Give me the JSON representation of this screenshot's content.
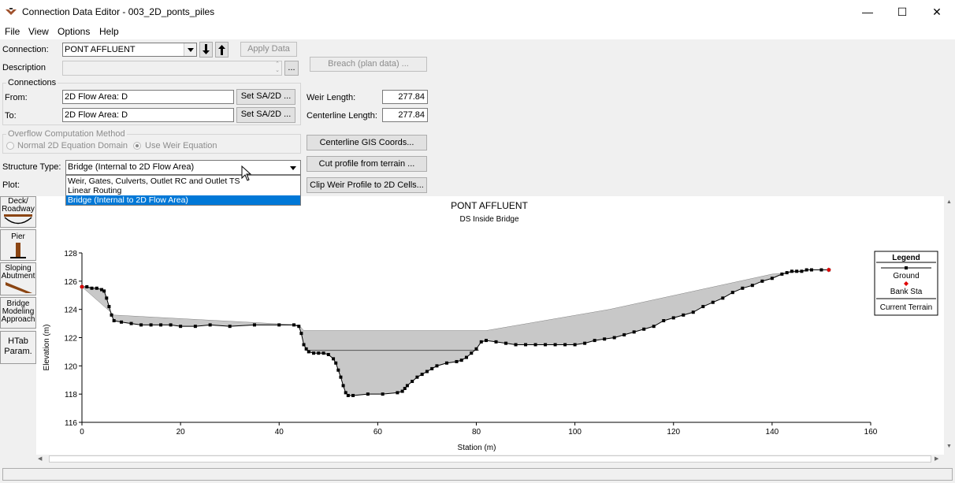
{
  "window": {
    "title": "Connection Data Editor - 003_2D_ponts_piles",
    "minimize": "—",
    "maximize": "☐",
    "close": "✕"
  },
  "menu": [
    "File",
    "View",
    "Options",
    "Help"
  ],
  "form": {
    "connection_label": "Connection:",
    "connection_value": "PONT AFFLUENT",
    "apply_data": "Apply Data",
    "description_label": "Description",
    "ellipsis": "...",
    "breach_button": "Breach (plan data) ...",
    "connections_group": "Connections",
    "from_label": "From:",
    "from_value": "2D Flow Area: D",
    "to_label": "To:",
    "to_value": "2D Flow Area: D",
    "set_sa_button": "Set SA/2D ...",
    "weir_length_label": "Weir Length:",
    "weir_length_value": "277.84",
    "centerline_length_label": "Centerline Length:",
    "centerline_length_value": "277.84",
    "overflow_group": "Overflow Computation Method",
    "overflow_option_1": "Normal 2D Equation Domain",
    "overflow_option_2": "Use Weir Equation",
    "centerline_gis_button": "Centerline GIS Coords...",
    "cut_profile_button": "Cut profile from terrain ...",
    "clip_weir_button": "Clip Weir Profile to 2D Cells...",
    "structure_type_label": "Structure Type:",
    "structure_type_value": "Bridge (Internal to 2D Flow Area)",
    "structure_type_options": [
      "Weir, Gates, Culverts, Outlet RC and Outlet TS",
      "Linear Routing",
      "Bridge (Internal to 2D Flow Area)"
    ],
    "plot_label": "Plot:"
  },
  "toolbar": {
    "deck": [
      "Deck/",
      "Roadway"
    ],
    "pier": "Pier",
    "sloping": [
      "Sloping",
      "Abutment"
    ],
    "bridge_modeling": [
      "Bridge",
      "Modeling",
      "Approach"
    ],
    "htab": [
      "HTab",
      "Param."
    ]
  },
  "chart_data": {
    "type": "line",
    "title": "PONT AFFLUENT",
    "subtitle": "DS Inside Bridge",
    "xlabel": "Station (m)",
    "ylabel": "Elevation (m)",
    "xlim": [
      0,
      160
    ],
    "ylim": [
      116,
      128
    ],
    "xticks": [
      0,
      20,
      40,
      60,
      80,
      100,
      120,
      140,
      160
    ],
    "yticks": [
      116,
      118,
      120,
      122,
      124,
      126,
      128
    ],
    "legend_title": "Legend",
    "legend": [
      "Ground",
      "Bank Sta",
      "Current Terrain"
    ],
    "colors": {
      "ground": "#000000",
      "bank": "#e00000",
      "fill": "#c8c8c8"
    },
    "ground": [
      [
        0,
        125.6
      ],
      [
        1,
        125.6
      ],
      [
        2,
        125.5
      ],
      [
        3,
        125.5
      ],
      [
        4,
        125.4
      ],
      [
        4.5,
        125.3
      ],
      [
        5,
        124.8
      ],
      [
        5.5,
        124.2
      ],
      [
        6,
        123.6
      ],
      [
        6.5,
        123.2
      ],
      [
        8,
        123.1
      ],
      [
        10,
        123
      ],
      [
        12,
        122.9
      ],
      [
        14,
        122.9
      ],
      [
        16,
        122.9
      ],
      [
        18,
        122.9
      ],
      [
        20,
        122.8
      ],
      [
        23,
        122.8
      ],
      [
        26,
        122.9
      ],
      [
        30,
        122.8
      ],
      [
        35,
        122.9
      ],
      [
        40,
        122.9
      ],
      [
        43,
        122.9
      ],
      [
        44,
        122.8
      ],
      [
        44.5,
        122.3
      ],
      [
        45,
        121.5
      ],
      [
        45.5,
        121.2
      ],
      [
        46,
        121
      ],
      [
        47,
        120.9
      ],
      [
        48,
        120.9
      ],
      [
        49,
        120.9
      ],
      [
        50,
        120.8
      ],
      [
        51,
        120.5
      ],
      [
        51.5,
        120.2
      ],
      [
        52,
        119.7
      ],
      [
        52.5,
        119.2
      ],
      [
        53,
        118.6
      ],
      [
        53.5,
        118.1
      ],
      [
        54,
        117.9
      ],
      [
        55,
        117.9
      ],
      [
        58,
        118
      ],
      [
        61,
        118
      ],
      [
        64,
        118.1
      ],
      [
        65,
        118.2
      ],
      [
        65.5,
        118.4
      ],
      [
        66,
        118.6
      ],
      [
        67,
        118.9
      ],
      [
        68,
        119.2
      ],
      [
        69,
        119.4
      ],
      [
        70,
        119.6
      ],
      [
        71,
        119.8
      ],
      [
        72,
        120
      ],
      [
        74,
        120.2
      ],
      [
        76,
        120.3
      ],
      [
        77,
        120.4
      ],
      [
        78,
        120.6
      ],
      [
        79,
        120.9
      ],
      [
        80,
        121.2
      ],
      [
        81,
        121.7
      ],
      [
        82,
        121.8
      ],
      [
        84,
        121.7
      ],
      [
        86,
        121.6
      ],
      [
        88,
        121.5
      ],
      [
        90,
        121.5
      ],
      [
        92,
        121.5
      ],
      [
        94,
        121.5
      ],
      [
        96,
        121.5
      ],
      [
        98,
        121.5
      ],
      [
        100,
        121.5
      ],
      [
        102,
        121.6
      ],
      [
        104,
        121.8
      ],
      [
        106,
        121.9
      ],
      [
        108,
        122
      ],
      [
        110,
        122.2
      ],
      [
        112,
        122.4
      ],
      [
        114,
        122.6
      ],
      [
        116,
        122.8
      ],
      [
        118,
        123.2
      ],
      [
        120,
        123.4
      ],
      [
        122,
        123.6
      ],
      [
        124,
        123.8
      ],
      [
        126,
        124.2
      ],
      [
        128,
        124.5
      ],
      [
        130,
        124.8
      ],
      [
        132,
        125.2
      ],
      [
        134,
        125.5
      ],
      [
        136,
        125.7
      ],
      [
        138,
        126
      ],
      [
        140,
        126.2
      ],
      [
        142,
        126.5
      ],
      [
        143,
        126.6
      ],
      [
        144,
        126.7
      ],
      [
        145,
        126.7
      ],
      [
        146,
        126.7
      ],
      [
        147,
        126.8
      ],
      [
        148,
        126.8
      ],
      [
        150,
        126.8
      ],
      [
        151.5,
        126.8
      ]
    ],
    "deck_top": [
      [
        0,
        125.6
      ],
      [
        6.5,
        123.6
      ],
      [
        44,
        122.9
      ],
      [
        45,
        122.5
      ],
      [
        82,
        122.5
      ],
      [
        107,
        124
      ],
      [
        140,
        126.5
      ],
      [
        147,
        126.7
      ]
    ],
    "deck_bottom_y": 121.1,
    "deck_bottom_x": [
      45.5,
      80.5
    ],
    "bank_stations": [
      [
        0,
        125.6
      ],
      [
        151.5,
        126.8
      ]
    ]
  }
}
